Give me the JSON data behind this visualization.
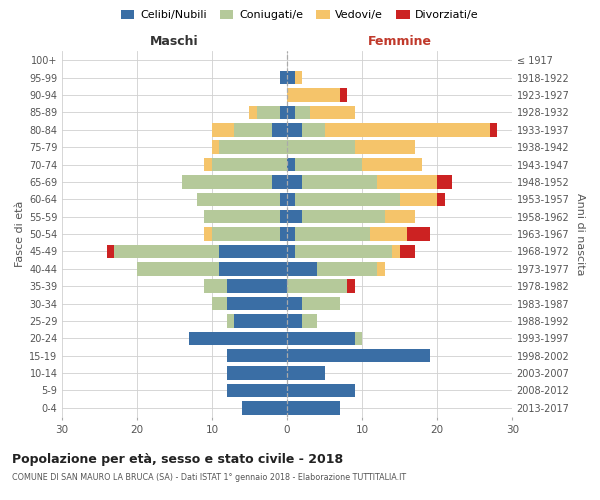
{
  "age_groups": [
    "0-4",
    "5-9",
    "10-14",
    "15-19",
    "20-24",
    "25-29",
    "30-34",
    "35-39",
    "40-44",
    "45-49",
    "50-54",
    "55-59",
    "60-64",
    "65-69",
    "70-74",
    "75-79",
    "80-84",
    "85-89",
    "90-94",
    "95-99",
    "100+"
  ],
  "birth_years": [
    "2013-2017",
    "2008-2012",
    "2003-2007",
    "1998-2002",
    "1993-1997",
    "1988-1992",
    "1983-1987",
    "1978-1982",
    "1973-1977",
    "1968-1972",
    "1963-1967",
    "1958-1962",
    "1953-1957",
    "1948-1952",
    "1943-1947",
    "1938-1942",
    "1933-1937",
    "1928-1932",
    "1923-1927",
    "1918-1922",
    "≤ 1917"
  ],
  "colors": {
    "celibi": "#3a6ea5",
    "coniugati": "#b5c99a",
    "vedovi": "#f5c46a",
    "divorziati": "#cc2222"
  },
  "legend_labels": [
    "Celibi/Nubili",
    "Coniugati/e",
    "Vedovi/e",
    "Divorziati/e"
  ],
  "legend_color_keys": [
    "celibi",
    "coniugati",
    "vedovi",
    "divorziati"
  ],
  "male_celibi": [
    6,
    8,
    8,
    8,
    13,
    7,
    8,
    8,
    9,
    9,
    1,
    1,
    1,
    2,
    0,
    0,
    2,
    1,
    0,
    1,
    0
  ],
  "male_coniugati": [
    0,
    0,
    0,
    0,
    0,
    1,
    2,
    3,
    11,
    14,
    9,
    10,
    11,
    12,
    10,
    9,
    5,
    3,
    0,
    0,
    0
  ],
  "male_vedovi": [
    0,
    0,
    0,
    0,
    0,
    0,
    0,
    0,
    0,
    0,
    1,
    0,
    0,
    0,
    1,
    1,
    3,
    1,
    0,
    0,
    0
  ],
  "male_divorziati": [
    0,
    0,
    0,
    0,
    0,
    0,
    0,
    0,
    0,
    1,
    0,
    0,
    0,
    0,
    0,
    0,
    0,
    0,
    0,
    0,
    0
  ],
  "fem_nubili": [
    7,
    9,
    5,
    19,
    9,
    2,
    2,
    0,
    4,
    1,
    1,
    2,
    1,
    2,
    1,
    0,
    2,
    1,
    0,
    1,
    0
  ],
  "fem_coniugate": [
    0,
    0,
    0,
    0,
    1,
    2,
    5,
    8,
    8,
    13,
    10,
    11,
    14,
    10,
    9,
    9,
    3,
    2,
    0,
    0,
    0
  ],
  "fem_vedove": [
    0,
    0,
    0,
    0,
    0,
    0,
    0,
    0,
    1,
    1,
    5,
    4,
    5,
    8,
    8,
    8,
    22,
    6,
    7,
    1,
    0
  ],
  "fem_divorziate": [
    0,
    0,
    0,
    0,
    0,
    0,
    0,
    1,
    0,
    2,
    3,
    0,
    1,
    2,
    0,
    0,
    1,
    0,
    1,
    0,
    0
  ],
  "title": "Popolazione per età, sesso e stato civile - 2018",
  "subtitle": "COMUNE DI SAN MAURO LA BRUCA (SA) - Dati ISTAT 1° gennaio 2018 - Elaborazione TUTTITALIA.IT",
  "label_maschi": "Maschi",
  "label_femmine": "Femmine",
  "ylabel_left": "Fasce di età",
  "ylabel_right": "Anni di nascita",
  "xlim": 30,
  "bg_color": "#ffffff",
  "grid_color": "#d0d0d0"
}
